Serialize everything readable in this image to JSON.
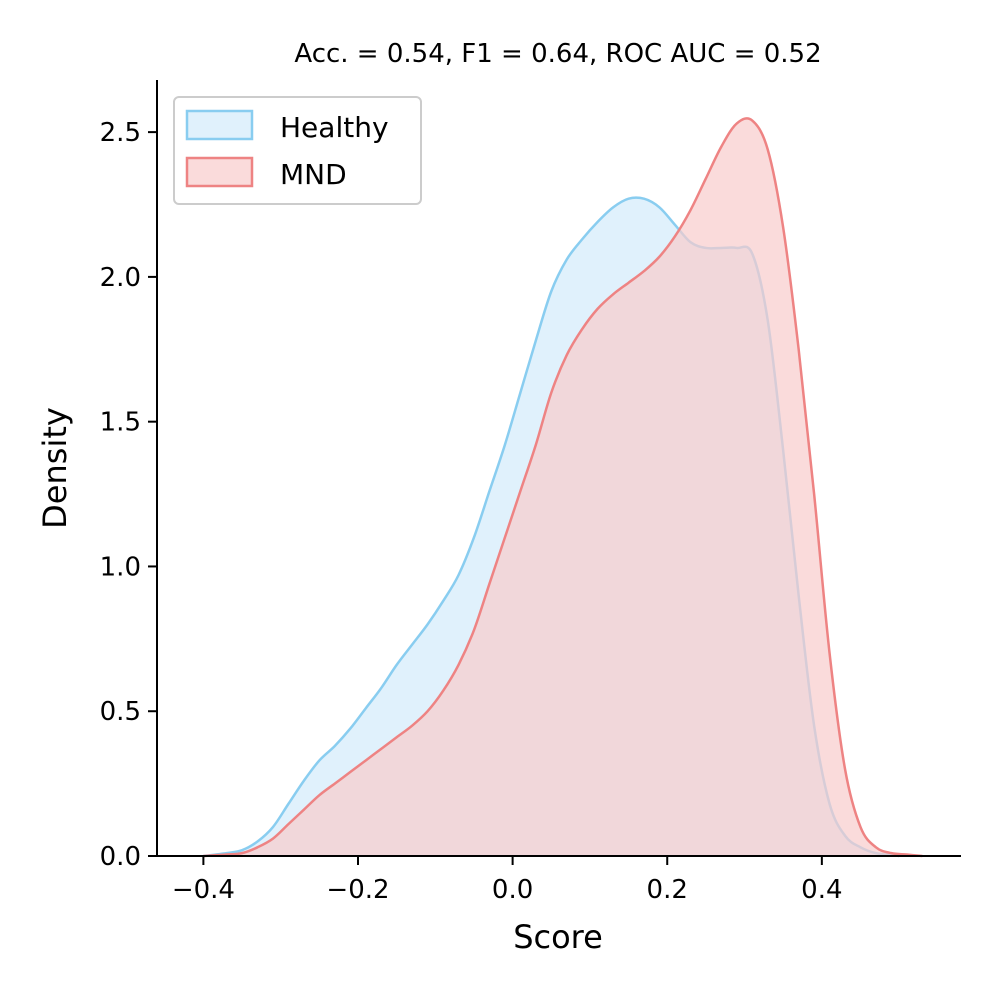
{
  "chart_data": {
    "type": "area",
    "title": "Acc. = 0.54, F1 = 0.64, ROC AUC = 0.52",
    "xlabel": "Score",
    "ylabel": "Density",
    "xlim": [
      -0.46,
      0.58
    ],
    "ylim": [
      0,
      2.68
    ],
    "xticks": [
      -0.4,
      -0.2,
      0.0,
      0.2,
      0.4
    ],
    "xtick_labels": [
      "−0.4",
      "−0.2",
      "0.0",
      "0.2",
      "0.4"
    ],
    "yticks": [
      0.0,
      0.5,
      1.0,
      1.5,
      2.0,
      2.5
    ],
    "ytick_labels": [
      "0.0",
      "0.5",
      "1.0",
      "1.5",
      "2.0",
      "2.5"
    ],
    "grid": false,
    "legend": {
      "position": "top-left",
      "entries": [
        "Healthy",
        "MND"
      ]
    },
    "series": [
      {
        "name": "Healthy",
        "color": "#89cdf0",
        "fill": "#d8eefb",
        "fill_opacity": 0.8,
        "x": [
          -0.4,
          -0.37,
          -0.35,
          -0.33,
          -0.31,
          -0.29,
          -0.27,
          -0.25,
          -0.23,
          -0.21,
          -0.19,
          -0.17,
          -0.15,
          -0.13,
          -0.11,
          -0.09,
          -0.07,
          -0.05,
          -0.03,
          -0.01,
          0.01,
          0.03,
          0.05,
          0.07,
          0.09,
          0.11,
          0.13,
          0.15,
          0.17,
          0.19,
          0.21,
          0.23,
          0.25,
          0.27,
          0.29,
          0.31,
          0.33,
          0.35,
          0.37,
          0.39,
          0.41,
          0.43,
          0.45,
          0.47,
          0.5
        ],
        "y": [
          0.0,
          0.01,
          0.02,
          0.05,
          0.1,
          0.18,
          0.26,
          0.33,
          0.38,
          0.44,
          0.51,
          0.58,
          0.66,
          0.73,
          0.8,
          0.88,
          0.97,
          1.1,
          1.26,
          1.42,
          1.6,
          1.78,
          1.95,
          2.06,
          2.13,
          2.19,
          2.24,
          2.27,
          2.27,
          2.24,
          2.18,
          2.12,
          2.1,
          2.1,
          2.1,
          2.08,
          1.85,
          1.4,
          0.9,
          0.45,
          0.18,
          0.07,
          0.03,
          0.01,
          0.0
        ]
      },
      {
        "name": "MND",
        "color": "#ee8383",
        "fill": "#f8cccc",
        "fill_opacity": 0.7,
        "x": [
          -0.4,
          -0.37,
          -0.35,
          -0.33,
          -0.31,
          -0.29,
          -0.27,
          -0.25,
          -0.23,
          -0.21,
          -0.19,
          -0.17,
          -0.15,
          -0.13,
          -0.11,
          -0.09,
          -0.07,
          -0.05,
          -0.03,
          -0.01,
          0.01,
          0.03,
          0.05,
          0.07,
          0.09,
          0.11,
          0.13,
          0.15,
          0.17,
          0.19,
          0.21,
          0.23,
          0.25,
          0.27,
          0.29,
          0.31,
          0.33,
          0.35,
          0.37,
          0.39,
          0.41,
          0.43,
          0.45,
          0.47,
          0.49,
          0.51,
          0.53
        ],
        "y": [
          0.0,
          0.005,
          0.01,
          0.03,
          0.06,
          0.11,
          0.16,
          0.21,
          0.25,
          0.29,
          0.33,
          0.37,
          0.41,
          0.45,
          0.5,
          0.57,
          0.66,
          0.78,
          0.94,
          1.1,
          1.26,
          1.42,
          1.6,
          1.73,
          1.82,
          1.89,
          1.94,
          1.98,
          2.02,
          2.07,
          2.14,
          2.23,
          2.34,
          2.45,
          2.53,
          2.54,
          2.44,
          2.17,
          1.75,
          1.25,
          0.7,
          0.3,
          0.1,
          0.03,
          0.01,
          0.005,
          0.0
        ]
      }
    ]
  }
}
